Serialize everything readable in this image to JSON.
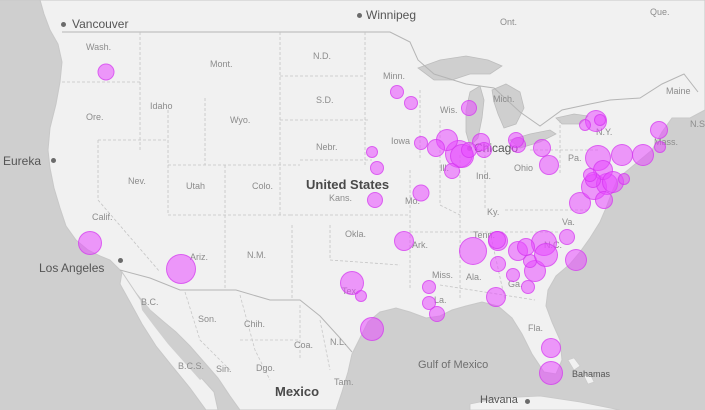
{
  "map": {
    "ocean_color": "#cfcfcf",
    "land_color": "#f1f1f1",
    "marker_color": "#e84aff"
  },
  "labels": {
    "cities": [
      "Vancouver",
      "Winnipeg",
      "Eureka",
      "Los Angeles",
      "Chicago",
      "Havana"
    ],
    "countries": [
      "United States",
      "Mexico"
    ],
    "water": [
      "Gulf of Mexico"
    ],
    "other": [
      "Bahamas"
    ],
    "regions": [
      "Ont.",
      "Que.",
      "Maine",
      "N.S.",
      "Wash.",
      "Mont.",
      "N.D.",
      "Minn.",
      "Mich.",
      "Ore.",
      "Idaho",
      "S.D.",
      "Wyo.",
      "Wis.",
      "N.Y.",
      "Mass.",
      "Nebr.",
      "Iowa",
      "Pa.",
      "Nev.",
      "Utah",
      "Colo.",
      "Ill.",
      "Ind.",
      "Ohio",
      "Calif.",
      "Kans.",
      "Mo.",
      "Ky.",
      "Va.",
      "Okla.",
      "Ark.",
      "Tenn.",
      "N.C.",
      "Ariz.",
      "N.M.",
      "Miss.",
      "Ala.",
      "Ga.",
      "Tex.",
      "La.",
      "Fla.",
      "B.C.",
      "Son.",
      "Chih.",
      "Coa.",
      "N.L.",
      "B.C.S.",
      "Sin.",
      "Dgo.",
      "Tam."
    ]
  },
  "markers": [
    {
      "name": "Spokane",
      "size": "small"
    },
    {
      "name": "Los Angeles",
      "size": "medium"
    },
    {
      "name": "Phoenix",
      "size": "large"
    },
    {
      "name": "Dallas",
      "size": "medium"
    },
    {
      "name": "Houston",
      "size": "medium"
    },
    {
      "name": "Austin",
      "size": "small"
    },
    {
      "name": "Minneapolis",
      "size": "small"
    },
    {
      "name": "St. Paul",
      "size": "small"
    },
    {
      "name": "Eau Claire",
      "size": "small"
    },
    {
      "name": "Green Bay",
      "size": "small"
    },
    {
      "name": "Chicago",
      "size": "large"
    },
    {
      "name": "Milwaukee",
      "size": "small"
    },
    {
      "name": "Des Moines",
      "size": "small"
    },
    {
      "name": "Omaha",
      "size": "small"
    },
    {
      "name": "Kansas City",
      "size": "small"
    },
    {
      "name": "Wichita",
      "size": "small"
    },
    {
      "name": "St. Louis",
      "size": "small"
    },
    {
      "name": "Springfield",
      "size": "small"
    },
    {
      "name": "Memphis",
      "size": "small"
    },
    {
      "name": "Nashville",
      "size": "medium"
    },
    {
      "name": "Atlanta",
      "size": "large"
    },
    {
      "name": "Birmingham",
      "size": "medium"
    },
    {
      "name": "Jacksonville",
      "size": "small"
    },
    {
      "name": "Orlando",
      "size": "small"
    },
    {
      "name": "Tampa",
      "size": "small"
    },
    {
      "name": "Miami",
      "size": "medium"
    },
    {
      "name": "New Orleans",
      "size": "small"
    },
    {
      "name": "Baton Rouge",
      "size": "small"
    },
    {
      "name": "Charlotte",
      "size": "medium"
    },
    {
      "name": "Raleigh",
      "size": "medium"
    },
    {
      "name": "Richmond",
      "size": "medium"
    },
    {
      "name": "Washington",
      "size": "large"
    },
    {
      "name": "Baltimore",
      "size": "medium"
    },
    {
      "name": "Philadelphia",
      "size": "large"
    },
    {
      "name": "New York",
      "size": "large"
    },
    {
      "name": "Boston",
      "size": "medium"
    },
    {
      "name": "Albany",
      "size": "small"
    },
    {
      "name": "Syracuse",
      "size": "small"
    },
    {
      "name": "Pittsburgh",
      "size": "medium"
    },
    {
      "name": "Cleveland",
      "size": "small"
    },
    {
      "name": "Detroit",
      "size": "medium"
    },
    {
      "name": "Columbus",
      "size": "medium"
    },
    {
      "name": "Indianapolis",
      "size": "small"
    },
    {
      "name": "Louisville",
      "size": "small"
    },
    {
      "name": "Knoxville",
      "size": "medium"
    }
  ]
}
